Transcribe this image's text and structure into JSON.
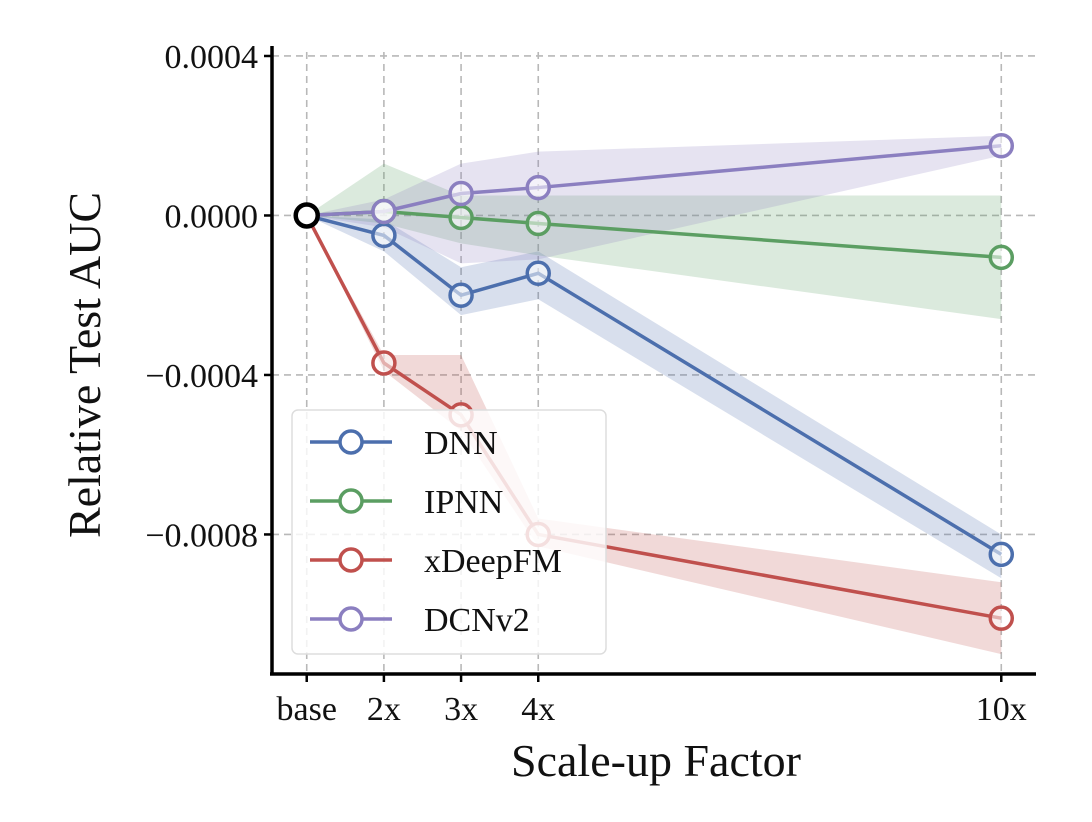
{
  "chart_data": {
    "type": "line",
    "title": "",
    "xlabel": "Scale-up Factor",
    "ylabel": "Relative Test AUC",
    "x_numeric": [
      1,
      2,
      3,
      4,
      10
    ],
    "categories": [
      "base",
      "2x",
      "3x",
      "4x",
      "10x"
    ],
    "xlim": [
      0.55,
      10.45
    ],
    "ylim": [
      -0.00115,
      0.00041
    ],
    "yticks": [
      0.0004,
      0.0,
      -0.0004,
      -0.0008
    ],
    "ytick_labels": [
      "0.0004",
      "0.0000",
      "−0.0004",
      "−0.0008"
    ],
    "grid": true,
    "legend_position": "lower-left",
    "base_point": {
      "x": 1,
      "y": 0.0,
      "color": "#000000"
    },
    "series": [
      {
        "name": "DNN",
        "color": "#4c6fad",
        "values": [
          0.0,
          -5e-05,
          -0.0002,
          -0.000145,
          -0.00085
        ],
        "lower": [
          0.0,
          -9e-05,
          -0.00025,
          -0.00021,
          -0.00091
        ],
        "upper": [
          0.0,
          -1e-05,
          -0.00013,
          -9e-05,
          -0.0008
        ]
      },
      {
        "name": "IPNN",
        "color": "#5b9e62",
        "values": [
          0.0,
          1e-05,
          -5e-06,
          -2e-05,
          -0.000105
        ],
        "lower": [
          0.0,
          -2e-05,
          -7e-05,
          -0.0001,
          -0.00026
        ],
        "upper": [
          0.0,
          0.00013,
          5e-05,
          5e-05,
          5e-05
        ]
      },
      {
        "name": "xDeepFM",
        "color": "#c0504d",
        "values": [
          0.0,
          -0.00037,
          -0.0005,
          -0.0008,
          -0.00101
        ],
        "lower": [
          0.0,
          -0.00039,
          -0.00054,
          -0.00083,
          -0.0011
        ],
        "upper": [
          0.0,
          -0.00035,
          -0.00035,
          -0.00076,
          -0.00092
        ]
      },
      {
        "name": "DCNv2",
        "color": "#8b7fc0",
        "values": [
          0.0,
          1e-05,
          5.5e-05,
          7e-05,
          0.000175
        ],
        "lower": [
          0.0,
          -3e-05,
          -0.00012,
          -0.00011,
          0.00015
        ],
        "upper": [
          0.0,
          4e-05,
          0.00013,
          0.00016,
          0.0002
        ]
      }
    ]
  }
}
